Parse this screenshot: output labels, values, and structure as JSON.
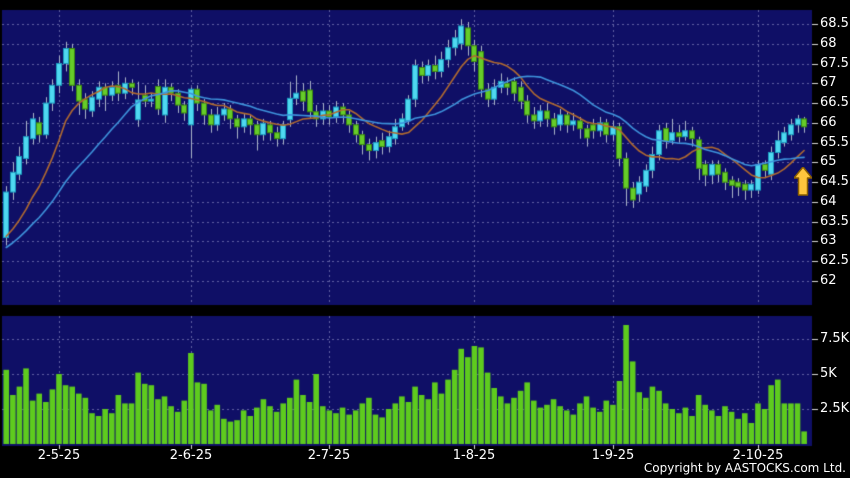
{
  "meta": {
    "copyright": "Copyright by AASTOCKS.com Ltd."
  },
  "colors": {
    "background": "#000000",
    "panel_bg": "#0f0f66",
    "grid": "rgba(150,150,205,0.6)",
    "axis_tick": "rgba(255,255,255,0.85)",
    "up_candle": "#4fd8f0",
    "up_candle_border": "#1b9cc0",
    "down_candle": "#66cc29",
    "down_candle_border": "#3c8a10",
    "wick": "#aab4c8",
    "ma_fast": "#b06a30",
    "ma_slow": "#3e93dc",
    "volume_bar": "#5ecb1e",
    "axis_text": "#ffffff",
    "arrow_fill": "#ffc53d",
    "arrow_outline": "#8a5f00"
  },
  "axes": {
    "price_tick_labels": [
      "68.5",
      "68",
      "67.5",
      "67",
      "66.5",
      "66",
      "65.5",
      "65",
      "64.5",
      "64",
      "63.5",
      "63",
      "62.5",
      "62"
    ],
    "price_tick_values": [
      68.5,
      68,
      67.5,
      67,
      66.5,
      66,
      65.5,
      65,
      64.5,
      64,
      63.5,
      63,
      62.5,
      62
    ],
    "volume_tick_labels": [
      "7.5K",
      "5K",
      "2.5K"
    ],
    "volume_tick_values": [
      7500,
      5000,
      2500
    ],
    "date_ticks": [
      {
        "label": "2-5-25",
        "index": 8
      },
      {
        "label": "2-6-25",
        "index": 28
      },
      {
        "label": "2-7-25",
        "index": 49
      },
      {
        "label": "1-8-25",
        "index": 71
      },
      {
        "label": "1-9-25",
        "index": 92
      },
      {
        "label": "2-10-25",
        "index": 114
      }
    ]
  },
  "chart_data": {
    "type": "candlestick",
    "title": "",
    "legend": "none",
    "grid": "dashed",
    "price_ylim": [
      61.4,
      68.85
    ],
    "volume_ylim": [
      0,
      9100
    ],
    "x_tick_labels": [
      "2-5-25",
      "2-6-25",
      "2-7-25",
      "1-8-25",
      "1-9-25",
      "2-10-25"
    ],
    "x_tick_indices": [
      8,
      28,
      49,
      71,
      92,
      114
    ],
    "series": {
      "open": [
        63.1,
        64.25,
        64.7,
        65.1,
        65.6,
        66.0,
        65.7,
        66.5,
        66.95,
        67.5,
        67.88,
        66.95,
        66.6,
        66.3,
        66.6,
        66.9,
        66.7,
        66.95,
        66.75,
        67.0,
        66.08,
        66.7,
        66.55,
        66.92,
        66.2,
        66.9,
        66.75,
        66.45,
        65.95,
        66.85,
        66.5,
        66.2,
        65.95,
        66.2,
        66.35,
        66.1,
        65.9,
        66.1,
        65.95,
        65.7,
        65.95,
        65.75,
        65.6,
        66.08,
        66.62,
        66.8,
        66.83,
        66.28,
        66.1,
        66.3,
        66.15,
        66.4,
        66.2,
        65.95,
        65.7,
        65.45,
        65.3,
        65.55,
        65.4,
        65.6,
        65.9,
        66.05,
        66.6,
        67.4,
        67.2,
        67.45,
        67.3,
        67.6,
        67.9,
        68.0,
        68.4,
        67.95,
        67.8,
        66.85,
        66.6,
        66.9,
        67.0,
        67.05,
        66.9,
        66.55,
        66.2,
        66.05,
        66.3,
        66.1,
        65.95,
        66.2,
        65.95,
        66.05,
        65.85,
        65.95,
        65.8,
        66.0,
        65.7,
        65.9,
        65.1,
        64.35,
        64.2,
        64.4,
        64.8,
        65.2,
        65.86,
        65.55,
        65.75,
        65.65,
        65.8,
        65.57,
        64.95,
        64.68,
        64.95,
        64.75,
        64.55,
        64.5,
        64.45,
        64.3,
        64.3,
        64.95,
        64.7,
        65.25,
        65.5,
        65.7,
        65.95,
        66.1
      ],
      "high": [
        64.4,
        65.0,
        65.4,
        66.05,
        66.25,
        66.15,
        66.65,
        67.1,
        67.7,
        68.05,
        68.0,
        67.1,
        66.75,
        66.8,
        67.05,
        67.0,
        67.05,
        67.3,
        67.15,
        67.1,
        67.04,
        66.95,
        66.75,
        67.1,
        67.1,
        67.0,
        66.85,
        66.55,
        66.9,
        66.95,
        66.6,
        66.35,
        66.4,
        66.5,
        66.45,
        66.2,
        66.25,
        66.2,
        66.05,
        66.1,
        66.05,
        65.9,
        66.05,
        67.04,
        67.2,
        67.0,
        67.06,
        66.45,
        66.5,
        66.45,
        66.55,
        66.5,
        66.3,
        66.05,
        65.8,
        65.6,
        65.65,
        65.75,
        65.8,
        66.1,
        66.24,
        66.7,
        67.6,
        67.55,
        67.6,
        67.7,
        67.8,
        68.1,
        68.35,
        68.62,
        68.55,
        68.1,
        67.95,
        67.0,
        67.1,
        67.25,
        67.15,
        67.15,
        67.05,
        66.7,
        66.4,
        66.45,
        66.5,
        66.25,
        66.35,
        66.3,
        66.25,
        66.15,
        65.95,
        66.1,
        66.15,
        66.1,
        66.05,
        66.0,
        65.25,
        64.5,
        64.65,
        64.95,
        65.4,
        65.95,
        66.0,
        66.1,
        65.95,
        66.05,
        65.9,
        65.65,
        65.05,
        65.05,
        65.05,
        64.85,
        64.65,
        64.6,
        64.55,
        64.55,
        65.05,
        65.05,
        65.4,
        65.8,
        65.9,
        66.1,
        66.2,
        66.15
      ],
      "low": [
        62.9,
        64.05,
        64.55,
        64.95,
        65.45,
        65.5,
        65.6,
        66.3,
        66.75,
        67.3,
        66.8,
        66.2,
        66.1,
        66.15,
        66.4,
        66.3,
        66.55,
        66.55,
        66.6,
        66.7,
        65.9,
        66.4,
        66.4,
        66.2,
        66.0,
        66.55,
        66.25,
        66.05,
        65.1,
        66.3,
        65.95,
        65.75,
        65.8,
        66.05,
        65.85,
        65.6,
        65.75,
        65.7,
        65.3,
        65.55,
        65.55,
        65.4,
        65.45,
        65.9,
        66.45,
        66.3,
        66.1,
        65.9,
        65.95,
        65.95,
        66.0,
        66.0,
        65.75,
        65.5,
        65.2,
        65.05,
        65.1,
        65.2,
        65.25,
        65.45,
        65.8,
        65.95,
        66.4,
        67.0,
        67.05,
        67.1,
        67.15,
        67.4,
        67.7,
        67.85,
        67.7,
        67.3,
        66.65,
        66.4,
        66.45,
        66.75,
        66.7,
        66.55,
        66.35,
        66.0,
        65.85,
        65.9,
        65.9,
        65.7,
        65.8,
        65.75,
        65.8,
        65.6,
        65.4,
        65.6,
        65.65,
        65.5,
        65.55,
        64.9,
        63.9,
        63.85,
        64.0,
        64.25,
        64.6,
        65.05,
        65.35,
        65.45,
        65.5,
        65.55,
        65.4,
        64.55,
        64.4,
        64.45,
        64.5,
        64.3,
        64.1,
        64.15,
        64.05,
        64.1,
        64.2,
        64.6,
        64.55,
        65.1,
        65.4,
        65.55,
        65.75,
        65.75
      ],
      "close": [
        64.25,
        64.75,
        65.15,
        65.65,
        66.1,
        65.7,
        66.5,
        66.95,
        67.5,
        67.88,
        66.95,
        66.55,
        66.35,
        66.65,
        66.9,
        66.7,
        66.9,
        66.75,
        67.0,
        66.9,
        66.58,
        66.55,
        66.6,
        66.35,
        66.9,
        66.75,
        66.45,
        66.25,
        66.85,
        66.5,
        66.2,
        65.95,
        66.2,
        66.35,
        66.1,
        65.9,
        66.1,
        65.95,
        65.7,
        65.99,
        65.75,
        65.6,
        65.95,
        66.62,
        66.75,
        66.55,
        66.28,
        66.1,
        66.3,
        66.15,
        66.4,
        66.2,
        65.95,
        65.7,
        65.45,
        65.3,
        65.5,
        65.4,
        65.65,
        65.9,
        66.1,
        66.6,
        67.45,
        67.2,
        67.45,
        67.3,
        67.6,
        67.9,
        68.15,
        68.45,
        67.95,
        67.55,
        66.85,
        66.6,
        66.9,
        67.05,
        66.9,
        66.75,
        66.55,
        66.2,
        66.05,
        66.3,
        66.1,
        65.9,
        66.2,
        65.95,
        66.05,
        65.85,
        65.62,
        65.8,
        66.0,
        65.7,
        65.9,
        65.1,
        64.35,
        64.05,
        64.5,
        64.8,
        65.2,
        65.8,
        65.53,
        65.75,
        65.65,
        65.8,
        65.6,
        64.85,
        64.68,
        64.95,
        64.7,
        64.5,
        64.42,
        64.38,
        64.3,
        64.45,
        64.95,
        64.8,
        65.25,
        65.55,
        65.75,
        65.95,
        66.1,
        65.9
      ],
      "volume": [
        5300,
        3500,
        4100,
        5400,
        3100,
        3600,
        3000,
        3900,
        5000,
        4200,
        4100,
        3600,
        3300,
        2200,
        2000,
        2500,
        2200,
        3500,
        2900,
        2900,
        5100,
        4300,
        4200,
        3200,
        3400,
        2700,
        2300,
        3100,
        6500,
        4400,
        4300,
        2400,
        2800,
        1800,
        1600,
        1700,
        2400,
        2000,
        2600,
        3200,
        2700,
        2300,
        2900,
        3300,
        4600,
        3500,
        3000,
        5000,
        2700,
        2400,
        2200,
        2600,
        2100,
        2400,
        2900,
        3300,
        2100,
        1900,
        2500,
        2900,
        3400,
        3000,
        4100,
        3500,
        3200,
        4400,
        3600,
        4600,
        5300,
        6800,
        6200,
        7000,
        6900,
        5100,
        4000,
        3400,
        2900,
        3300,
        3800,
        4400,
        3100,
        2600,
        2800,
        3200,
        2700,
        2400,
        2100,
        2900,
        3400,
        2600,
        2300,
        3100,
        2800,
        4500,
        8500,
        5900,
        3700,
        3300,
        4100,
        3800,
        2900,
        2500,
        2200,
        2600,
        2000,
        3500,
        2800,
        2400,
        2000,
        2700,
        2300,
        1800,
        2200,
        1500,
        2900,
        2500,
        4200,
        4600,
        2900,
        2900,
        2900,
        900
      ],
      "up_color_meaning": "cyan = close above open",
      "down_color_meaning": "green = close below open"
    },
    "moving_averages": [
      {
        "name": "ma-fast",
        "period": 10,
        "color": "#b06a30"
      },
      {
        "name": "ma-slow",
        "period": 20,
        "color": "#3e93dc"
      }
    ],
    "ma_seed_closes": [
      62.2,
      62.35,
      62.3,
      62.5,
      62.55,
      62.45,
      62.6,
      62.7,
      62.65,
      62.8,
      62.75,
      62.9,
      62.85,
      63.0,
      62.95,
      63.05,
      63.0,
      63.15,
      63.1,
      63.05
    ],
    "annotation": {
      "type": "up-arrow",
      "near_index": 120,
      "price_tip": 64.75
    }
  }
}
